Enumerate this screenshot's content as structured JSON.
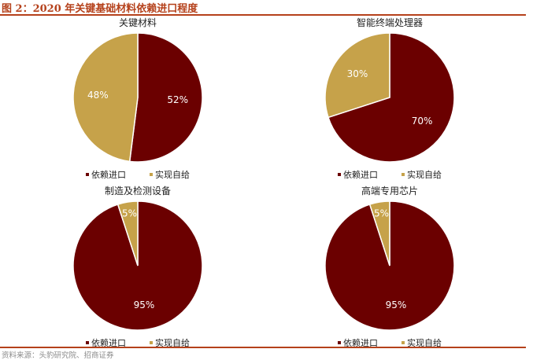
{
  "figure": {
    "title": "图 2：2020 年关键基础材料依赖进口程度",
    "source": "资料来源：头豹研究院、招商证券"
  },
  "colors": {
    "依赖进口": "#6b0000",
    "实现自给": "#c6a24a",
    "accent": "#b5411b"
  },
  "chart_data": [
    {
      "type": "pie",
      "title": "关键材料",
      "labels": [
        "依赖进口",
        "实现自给"
      ],
      "values": [
        52,
        48
      ],
      "value_labels": [
        "52%",
        "48%"
      ],
      "legend": [
        "依赖进口",
        "实现自给"
      ],
      "legend_position": "bottom"
    },
    {
      "type": "pie",
      "title": "智能终端处理器",
      "labels": [
        "依赖进口",
        "实现自给"
      ],
      "values": [
        70,
        30
      ],
      "value_labels": [
        "70%",
        "30%"
      ],
      "legend": [
        "依赖进口",
        "实现自给"
      ],
      "legend_position": "bottom"
    },
    {
      "type": "pie",
      "title": "制造及检测设备",
      "labels": [
        "依赖进口",
        "实现自给"
      ],
      "values": [
        95,
        5
      ],
      "value_labels": [
        "95%",
        "5%"
      ],
      "legend": [
        "依赖进口",
        "实现自给"
      ],
      "legend_position": "bottom"
    },
    {
      "type": "pie",
      "title": "高端专用芯片",
      "labels": [
        "依赖进口",
        "实现自给"
      ],
      "values": [
        95,
        5
      ],
      "value_labels": [
        "95%",
        "5%"
      ],
      "legend": [
        "依赖进口",
        "实现自给"
      ],
      "legend_position": "bottom"
    }
  ]
}
